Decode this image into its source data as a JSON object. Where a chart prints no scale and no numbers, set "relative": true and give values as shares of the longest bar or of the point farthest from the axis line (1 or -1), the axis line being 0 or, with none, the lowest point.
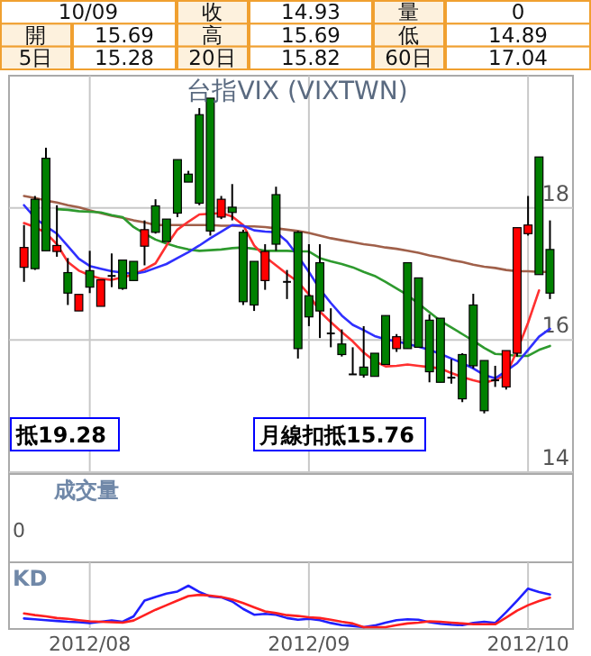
{
  "chart_data": [
    {
      "type": "other",
      "annotations": [
        "10/09",
        "收",
        "14.93",
        "量",
        "0",
        "開",
        "15.69",
        "高",
        "15.69",
        "低",
        "14.89",
        "5日",
        "15.28",
        "20日",
        "15.82",
        "60日",
        "17.04"
      ]
    },
    {
      "type": "candlestick",
      "title": "台指VIX (VIXTWN)",
      "categories": [
        null,
        null,
        null,
        null,
        null,
        null,
        "2012/08",
        null,
        null,
        null,
        null,
        null,
        null,
        null,
        null,
        null,
        null,
        null,
        null,
        null,
        null,
        null,
        null,
        null,
        null,
        null,
        "2012/09",
        null,
        null,
        null,
        null,
        null,
        null,
        null,
        null,
        null,
        null,
        null,
        null,
        null,
        null,
        null,
        null,
        null,
        null,
        null,
        "2012/10",
        null,
        null
      ],
      "ohlc": [
        [
          17.1,
          17.74,
          16.88,
          17.4
        ],
        [
          18.13,
          18.18,
          17.06,
          17.08
        ],
        [
          18.75,
          18.91,
          17.35,
          17.35
        ],
        [
          17.34,
          18.04,
          17.26,
          17.43
        ],
        [
          17.02,
          17.24,
          16.53,
          16.71
        ],
        [
          16.44,
          16.69,
          16.44,
          16.69
        ],
        [
          17.05,
          17.35,
          16.71,
          16.8
        ],
        [
          16.51,
          16.91,
          16.51,
          16.91
        ],
        [
          16.97,
          17.31,
          16.8,
          16.97
        ],
        [
          17.21,
          17.21,
          16.76,
          16.78
        ],
        [
          17.19,
          17.19,
          16.9,
          16.9
        ],
        [
          17.42,
          17.81,
          17.13,
          17.67
        ],
        [
          18.03,
          18.13,
          17.61,
          17.63
        ],
        [
          17.83,
          17.83,
          17.49,
          17.49
        ],
        [
          18.73,
          18.73,
          17.86,
          17.92
        ],
        [
          18.51,
          18.56,
          18.39,
          18.39
        ],
        [
          19.41,
          19.51,
          18.04,
          18.07
        ],
        [
          19.66,
          19.66,
          17.58,
          17.65
        ],
        [
          17.86,
          18.18,
          17.83,
          18.13
        ],
        [
          18.01,
          18.36,
          17.81,
          17.93
        ],
        [
          17.63,
          17.67,
          16.53,
          16.58
        ],
        [
          17.19,
          17.19,
          16.44,
          16.53
        ],
        [
          16.9,
          17.45,
          16.76,
          17.34
        ],
        [
          18.2,
          18.32,
          17.35,
          17.45
        ],
        [
          16.88,
          17.06,
          16.62,
          16.88
        ],
        [
          17.63,
          17.65,
          15.72,
          15.87
        ],
        [
          16.67,
          17.45,
          16.21,
          16.35
        ],
        [
          17.17,
          17.45,
          16.03,
          16.44
        ],
        [
          16.1,
          16.48,
          15.89,
          16.1
        ],
        [
          15.94,
          16.16,
          15.75,
          15.78
        ],
        [
          15.48,
          15.89,
          15.48,
          15.48
        ],
        [
          15.59,
          16.21,
          15.43,
          15.47
        ],
        [
          15.8,
          15.8,
          15.45,
          15.45
        ],
        [
          16.37,
          16.37,
          15.63,
          15.63
        ],
        [
          15.87,
          16.09,
          15.82,
          16.05
        ],
        [
          17.17,
          17.17,
          15.87,
          15.87
        ],
        [
          16.94,
          16.94,
          15.89,
          15.89
        ],
        [
          16.3,
          16.39,
          15.36,
          15.52
        ],
        [
          16.33,
          16.33,
          15.36,
          15.36
        ],
        [
          15.43,
          15.71,
          15.34,
          15.43
        ],
        [
          15.78,
          15.8,
          15.06,
          15.11
        ],
        [
          16.53,
          16.7,
          15.57,
          15.61
        ],
        [
          15.69,
          15.69,
          14.89,
          14.93
        ],
        [
          15.39,
          15.61,
          15.29,
          15.39
        ],
        [
          15.29,
          15.84,
          15.25,
          15.84
        ],
        [
          15.8,
          17.7,
          15.75,
          17.7
        ],
        [
          17.61,
          18.18,
          17.58,
          17.74
        ],
        [
          18.77,
          18.77,
          16.99,
          16.99
        ],
        [
          17.37,
          17.81,
          16.62,
          16.71
        ]
      ],
      "series": [
        {
          "type": "line",
          "color": "#a0604a",
          "values": [
            18.18,
            18.15,
            18.11,
            18.08,
            18.04,
            18.01,
            17.96,
            17.92,
            17.88,
            17.85,
            17.81,
            17.78,
            17.74,
            17.74,
            17.74,
            17.74,
            17.74,
            17.74,
            17.73,
            17.73,
            17.72,
            17.72,
            17.71,
            17.69,
            17.67,
            17.65,
            17.62,
            17.58,
            17.54,
            17.51,
            17.48,
            17.45,
            17.43,
            17.4,
            17.38,
            17.35,
            17.32,
            17.28,
            17.25,
            17.21,
            17.18,
            17.14,
            17.11,
            17.09,
            17.06,
            17.04,
            17.04,
            17.03,
            17.03
          ]
        },
        {
          "type": "line",
          "color": "#2e9a2e",
          "values": [
            null,
            null,
            null,
            17.98,
            17.97,
            17.95,
            17.94,
            17.93,
            17.89,
            17.86,
            17.71,
            17.61,
            17.52,
            17.46,
            17.41,
            17.37,
            17.35,
            17.36,
            17.37,
            17.39,
            17.4,
            17.38,
            17.35,
            17.35,
            17.35,
            17.34,
            17.34,
            17.24,
            17.19,
            17.15,
            17.1,
            17.03,
            16.97,
            16.88,
            16.78,
            16.68,
            16.55,
            16.42,
            16.29,
            16.19,
            16.09,
            15.99,
            15.88,
            15.79,
            15.78,
            15.76,
            15.76,
            15.85,
            15.91
          ]
        },
        {
          "type": "line",
          "color": "#ff3030",
          "values": [
            17.77,
            17.71,
            17.62,
            17.45,
            17.18,
            17.05,
            16.98,
            16.93,
            16.91,
            16.95,
            16.99,
            17.07,
            17.16,
            17.43,
            17.67,
            17.79,
            17.9,
            17.91,
            17.92,
            17.87,
            17.74,
            17.43,
            17.26,
            17.13,
            17.0,
            16.88,
            16.69,
            16.43,
            16.27,
            16.12,
            15.98,
            15.81,
            15.68,
            15.6,
            15.61,
            15.63,
            15.61,
            15.59,
            15.57,
            15.5,
            15.44,
            15.39,
            15.35,
            15.4,
            15.47,
            15.84,
            16.26,
            16.75,
            null
          ]
        },
        {
          "type": "line",
          "color": "#3030ff",
          "values": [
            18.04,
            17.85,
            17.72,
            17.61,
            17.42,
            17.23,
            17.12,
            17.08,
            17.04,
            17.02,
            17.0,
            17.03,
            17.09,
            17.15,
            17.24,
            17.33,
            17.43,
            17.54,
            17.64,
            17.74,
            17.73,
            17.66,
            17.64,
            17.63,
            17.49,
            17.27,
            17.03,
            16.77,
            16.56,
            16.37,
            16.23,
            16.15,
            16.06,
            16.01,
            15.98,
            15.94,
            15.9,
            15.85,
            15.79,
            15.72,
            15.65,
            15.57,
            15.47,
            15.42,
            15.53,
            15.65,
            15.85,
            16.05,
            16.17
          ]
        }
      ],
      "ylim": [
        14,
        20
      ],
      "yticks": [
        14,
        16,
        18
      ],
      "grid": true,
      "tick_labels": "y",
      "annotations": [
        "抵19.28",
        "月線扣抵15.76"
      ]
    },
    {
      "type": "other",
      "title": "成交量",
      "annotations": [
        "0"
      ]
    },
    {
      "type": "line",
      "title": "KD",
      "relative": true,
      "categories": [
        null,
        null,
        null,
        null,
        null,
        null,
        "2012/08",
        null,
        null,
        null,
        null,
        null,
        null,
        null,
        null,
        null,
        null,
        null,
        null,
        null,
        null,
        null,
        null,
        null,
        null,
        null,
        "2012/09",
        null,
        null,
        null,
        null,
        null,
        null,
        null,
        null,
        null,
        null,
        null,
        null,
        null,
        null,
        null,
        null,
        null,
        null,
        null,
        "2012/10",
        null,
        null
      ],
      "series": [
        {
          "color": "#2020ff",
          "values": [
            0.21,
            0.19,
            0.17,
            0.15,
            0.13,
            0.12,
            0.1,
            0.13,
            0.16,
            0.13,
            0.26,
            0.64,
            0.73,
            0.81,
            0.86,
            1,
            0.85,
            0.74,
            0.72,
            0.62,
            0.44,
            0.3,
            0.32,
            0.3,
            0.22,
            0.18,
            0.2,
            0.17,
            0.1,
            0.05,
            0.03,
            0.0,
            0.04,
            0.11,
            0.17,
            0.19,
            0.18,
            0.12,
            0.08,
            0.06,
            0.05,
            0.1,
            0.13,
            0.1,
            0.36,
            0.64,
            0.93,
            0.85,
            0.79
          ]
        },
        {
          "color": "#ff2020",
          "values": [
            0.33,
            0.29,
            0.26,
            0.22,
            0.2,
            0.17,
            0.14,
            0.13,
            0.12,
            0.11,
            0.16,
            0.29,
            0.42,
            0.53,
            0.64,
            0.75,
            0.78,
            0.76,
            0.73,
            0.67,
            0.58,
            0.48,
            0.38,
            0.34,
            0.29,
            0.27,
            0.24,
            0.22,
            0.18,
            0.13,
            0.09,
            0,
            0,
            0,
            0.05,
            0.09,
            0.11,
            0.14,
            0.13,
            0.11,
            0.09,
            0.07,
            0.07,
            0.07,
            0.23,
            0.4,
            0.53,
            0.63,
            0.71
          ]
        }
      ],
      "grid": "x",
      "tick_labels": "x"
    }
  ]
}
